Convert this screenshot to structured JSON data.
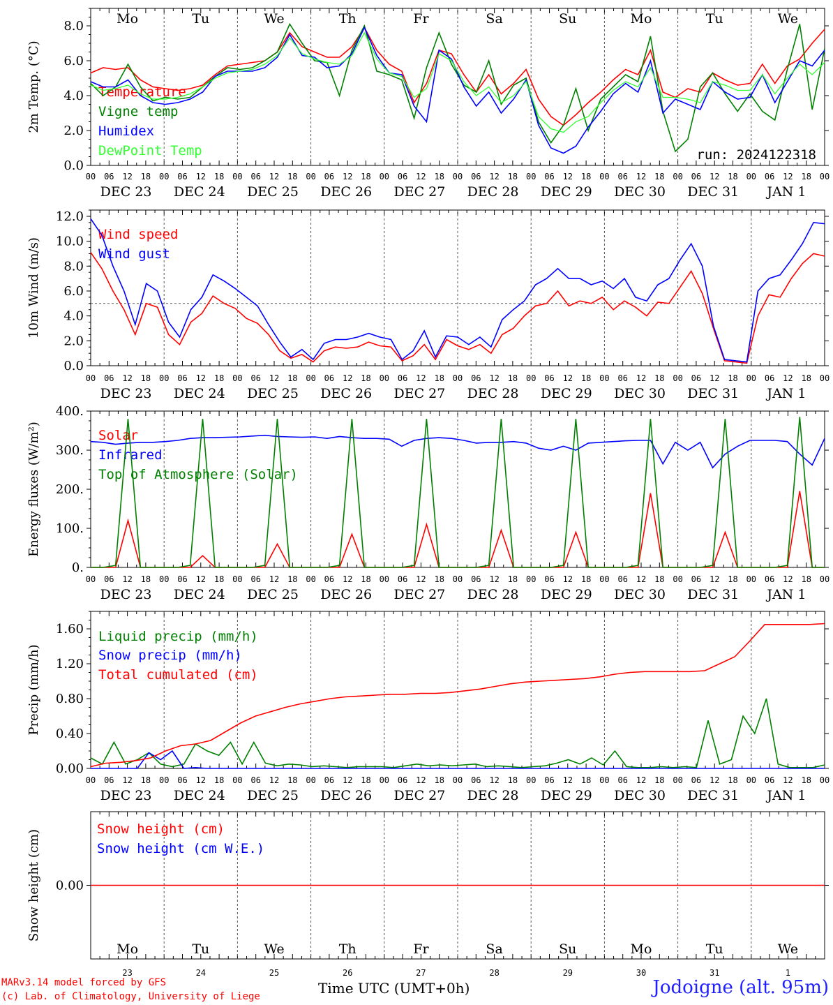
{
  "run_label": "run: 2024122318",
  "x_title": "Time UTC (UMT+0h)",
  "station": "Jodoigne (alt. 95m)",
  "credits": [
    "MARv3.14 model forced by GFS",
    "(c) Lab. of Climatology, University of Liege"
  ],
  "weekdays": [
    "Mo",
    "Tu",
    "We",
    "Th",
    "Fr",
    "Sa",
    "Su",
    "Mo",
    "Tu",
    "We"
  ],
  "weekend_days": [
    5,
    6
  ],
  "dates": [
    "DEC 23",
    "DEC 24",
    "DEC 25",
    "DEC 26",
    "DEC 27",
    "DEC 28",
    "DEC 29",
    "DEC 30",
    "DEC 31",
    "JAN  1"
  ],
  "day_numbers": [
    "23",
    "24",
    "25",
    "26",
    "27",
    "28",
    "29",
    "30",
    "31",
    "1"
  ],
  "hour_labels": [
    "00",
    "06",
    "12",
    "18"
  ],
  "final_hour_label": "00",
  "colors": {
    "red": "#ff0000",
    "green": "#008000",
    "blue": "#0000ff",
    "lime": "#33ff33",
    "weekend": "#ff0000"
  },
  "chart_data": [
    {
      "type": "line",
      "ylabel": "2m Temp. (°C)",
      "ylim": [
        0,
        9
      ],
      "yticks": [
        "0.0",
        "2.0",
        "4.0",
        "6.0",
        "8.0"
      ],
      "x_unit": "hours from DEC 23 00 UTC (3-hourly)",
      "series": [
        {
          "name": "Temperature",
          "color": "red",
          "values": [
            5.3,
            5.6,
            5.5,
            5.6,
            4.9,
            4.5,
            4.4,
            4.3,
            4.4,
            4.6,
            5.2,
            5.7,
            5.8,
            5.9,
            6.0,
            6.5,
            7.6,
            6.8,
            6.5,
            6.2,
            6.2,
            6.8,
            7.9,
            6.6,
            5.8,
            5.4,
            3.6,
            4.7,
            6.6,
            6.4,
            5.2,
            4.2,
            5.2,
            4.1,
            4.7,
            5.5,
            3.8,
            2.8,
            2.3,
            2.9,
            3.6,
            4.2,
            4.9,
            5.5,
            5.2,
            6.6,
            4.2,
            3.9,
            4.4,
            4.2,
            5.3,
            4.9,
            4.6,
            4.7,
            5.8,
            4.7,
            5.7,
            6.1,
            7.0,
            7.8
          ]
        },
        {
          "name": "Vigne temp",
          "color": "green",
          "values": [
            4.7,
            4.0,
            4.5,
            5.8,
            4.5,
            3.7,
            3.9,
            3.8,
            3.9,
            4.5,
            5.1,
            5.6,
            5.5,
            5.6,
            6.0,
            6.5,
            8.1,
            7.0,
            6.0,
            5.9,
            4.0,
            6.6,
            8.0,
            5.4,
            5.2,
            4.9,
            2.7,
            5.6,
            7.6,
            5.8,
            4.6,
            4.2,
            6.0,
            3.5,
            4.6,
            5.0,
            2.5,
            1.3,
            2.3,
            4.4,
            2.0,
            3.8,
            4.5,
            5.2,
            4.8,
            7.4,
            3.1,
            0.8,
            1.5,
            4.5,
            5.3,
            4.1,
            3.1,
            4.1,
            3.1,
            2.6,
            5.5,
            8.1,
            3.2,
            6.7
          ]
        },
        {
          "name": "Humidex",
          "color": "blue",
          "values": [
            4.8,
            4.5,
            4.5,
            4.9,
            4.0,
            3.6,
            3.5,
            3.6,
            3.8,
            4.2,
            5.1,
            5.4,
            5.4,
            5.4,
            5.6,
            6.2,
            7.5,
            6.3,
            6.2,
            5.6,
            5.7,
            6.4,
            7.9,
            6.3,
            5.3,
            5.2,
            3.4,
            2.5,
            6.6,
            6.1,
            4.5,
            3.4,
            4.2,
            3.0,
            3.8,
            4.9,
            2.3,
            1.0,
            0.7,
            1.1,
            2.2,
            3.1,
            4.1,
            4.7,
            4.2,
            6.0,
            3.0,
            3.8,
            3.5,
            3.2,
            4.8,
            4.2,
            3.8,
            3.9,
            5.2,
            3.6,
            4.8,
            6.0,
            5.7,
            6.6
          ]
        },
        {
          "name": "DewPoint Temp",
          "color": "lime",
          "values": [
            4.6,
            4.3,
            4.4,
            4.6,
            4.1,
            3.8,
            3.8,
            3.9,
            4.1,
            4.5,
            5.0,
            5.3,
            5.4,
            5.5,
            5.8,
            6.3,
            7.3,
            6.4,
            6.1,
            5.9,
            5.8,
            6.3,
            7.6,
            6.1,
            5.3,
            5.1,
            3.9,
            4.4,
            6.4,
            6.0,
            4.8,
            4.0,
            4.5,
            3.6,
            4.0,
            4.8,
            2.8,
            2.1,
            1.9,
            2.5,
            2.8,
            3.6,
            4.3,
            4.8,
            4.5,
            5.6,
            3.9,
            3.9,
            3.8,
            3.6,
            4.8,
            4.6,
            4.3,
            4.3,
            5.2,
            4.1,
            5.0,
            5.8,
            5.2,
            5.9
          ]
        }
      ]
    },
    {
      "type": "line",
      "ylabel": "10m Wind (m/s)",
      "ylim": [
        0,
        12.5
      ],
      "yticks": [
        "0.0",
        "2.0",
        "4.0",
        "6.0",
        "8.0",
        "10.0",
        "12.0"
      ],
      "hline": 5,
      "series": [
        {
          "name": "Wind speed",
          "color": "red",
          "values": [
            9.1,
            7.8,
            6.0,
            4.5,
            2.5,
            5.0,
            4.7,
            2.5,
            1.7,
            3.5,
            4.2,
            5.6,
            5.0,
            4.6,
            3.8,
            3.4,
            2.5,
            1.2,
            0.6,
            0.9,
            0.3,
            1.2,
            1.5,
            1.4,
            1.5,
            1.9,
            1.6,
            1.5,
            0.4,
            0.8,
            1.7,
            0.5,
            2.1,
            1.6,
            1.3,
            1.7,
            1.0,
            2.5,
            3.0,
            4.0,
            4.8,
            5.0,
            6.0,
            4.8,
            5.2,
            5.0,
            5.5,
            4.5,
            5.2,
            4.7,
            4.0,
            5.1,
            5.0,
            6.3,
            7.6,
            5.8,
            3.0,
            0.4,
            0.3,
            0.2,
            4.0,
            5.7,
            5.5,
            7.0,
            8.2,
            9.0,
            8.8
          ]
        },
        {
          "name": "Wind gust",
          "color": "blue",
          "values": [
            11.8,
            10.5,
            8.0,
            6.0,
            3.3,
            6.6,
            6.0,
            3.5,
            2.3,
            4.5,
            5.5,
            7.3,
            6.8,
            6.2,
            5.5,
            4.8,
            3.3,
            1.9,
            0.7,
            1.3,
            0.5,
            1.8,
            2.1,
            2.1,
            2.3,
            2.6,
            2.3,
            2.1,
            0.5,
            1.2,
            2.8,
            0.7,
            2.4,
            2.3,
            1.7,
            2.3,
            1.5,
            3.7,
            4.5,
            5.2,
            6.5,
            7.0,
            7.8,
            7.0,
            7.0,
            6.5,
            6.8,
            6.2,
            7.0,
            5.5,
            5.2,
            6.5,
            7.0,
            8.5,
            9.8,
            8.0,
            3.2,
            0.5,
            0.4,
            0.3,
            6.0,
            7.0,
            7.3,
            8.5,
            9.8,
            11.5,
            11.4
          ]
        }
      ]
    },
    {
      "type": "line",
      "ylabel": "Energy fluxes (W/m²)",
      "ylim": [
        0,
        400
      ],
      "yticks": [
        "0.",
        "100.",
        "200.",
        "300.",
        "400."
      ],
      "series": [
        {
          "name": "Solar",
          "color": "red",
          "values": [
            0,
            0,
            0,
            120,
            0,
            0,
            0,
            0,
            0,
            30,
            0,
            0,
            0,
            0,
            0,
            60,
            0,
            0,
            0,
            0,
            0,
            85,
            0,
            0,
            0,
            0,
            0,
            110,
            0,
            0,
            0,
            0,
            0,
            95,
            0,
            0,
            0,
            0,
            0,
            90,
            0,
            0,
            0,
            0,
            0,
            190,
            0,
            0,
            0,
            0,
            0,
            90,
            0,
            0,
            0,
            0,
            0,
            195,
            0,
            0
          ]
        },
        {
          "name": "Infrared",
          "color": "blue",
          "values": [
            322,
            320,
            315,
            318,
            320,
            320,
            322,
            325,
            330,
            332,
            332,
            333,
            334,
            336,
            338,
            335,
            334,
            333,
            334,
            330,
            335,
            332,
            330,
            330,
            328,
            310,
            325,
            330,
            332,
            330,
            325,
            318,
            320,
            320,
            322,
            318,
            305,
            300,
            310,
            300,
            318,
            320,
            322,
            324,
            325,
            325,
            265,
            320,
            300,
            320,
            255,
            290,
            310,
            325,
            325,
            325,
            322,
            290,
            262,
            330
          ]
        },
        {
          "name": "Top of Atmosphere (Solar)",
          "color": "green",
          "values": [
            0,
            0,
            5,
            380,
            0,
            0,
            0,
            0,
            5,
            380,
            0,
            0,
            0,
            0,
            5,
            380,
            0,
            0,
            0,
            0,
            5,
            380,
            0,
            0,
            0,
            0,
            5,
            380,
            0,
            0,
            0,
            0,
            5,
            380,
            0,
            0,
            0,
            0,
            5,
            380,
            0,
            0,
            0,
            0,
            5,
            380,
            0,
            0,
            0,
            0,
            5,
            380,
            0,
            0,
            0,
            0,
            5,
            385,
            0,
            0
          ]
        }
      ]
    },
    {
      "type": "line",
      "ylabel": "Precip (mm/h)",
      "ylim": [
        0,
        1.8
      ],
      "yticks": [
        "0.00",
        "0.40",
        "0.80",
        "1.20",
        "1.60"
      ],
      "series": [
        {
          "name": "Liquid precip (mm/h)",
          "color": "green",
          "values": [
            0.12,
            0.05,
            0.3,
            0.05,
            0.1,
            0.18,
            0.05,
            0.02,
            0.05,
            0.28,
            0.2,
            0.15,
            0.3,
            0.05,
            0.3,
            0.06,
            0.03,
            0.05,
            0.04,
            0.02,
            0.03,
            0.02,
            0.01,
            0.02,
            0.02,
            0.02,
            0.01,
            0.03,
            0.05,
            0.03,
            0.04,
            0.03,
            0.04,
            0.05,
            0.02,
            0.03,
            0.02,
            0.01,
            0.02,
            0.03,
            0.06,
            0.1,
            0.05,
            0.12,
            0.04,
            0.2,
            0.02,
            0.01,
            0.01,
            0.02,
            0.01,
            0.02,
            0.01,
            0.55,
            0.05,
            0.1,
            0.6,
            0.4,
            0.8,
            0.05,
            0.01,
            0.01,
            0.01,
            0.04
          ]
        },
        {
          "name": "Snow precip (mm/h)",
          "color": "blue",
          "values": [
            0,
            0,
            0,
            0,
            0,
            0.18,
            0.1,
            0.2,
            0,
            0.01,
            0,
            0,
            0,
            0,
            0,
            0,
            0,
            0,
            0,
            0,
            0,
            0,
            0,
            0,
            0,
            0,
            0,
            0,
            0,
            0,
            0,
            0,
            0,
            0,
            0,
            0,
            0,
            0,
            0,
            0,
            0,
            0,
            0,
            0,
            0,
            0,
            0,
            0,
            0,
            0,
            0,
            0,
            0,
            0,
            0,
            0,
            0,
            0,
            0,
            0,
            0,
            0,
            0,
            0
          ]
        },
        {
          "name": "Total cumulated (cm)",
          "color": "red",
          "values": [
            0.02,
            0.06,
            0.07,
            0.09,
            0.12,
            0.2,
            0.26,
            0.28,
            0.32,
            0.42,
            0.52,
            0.6,
            0.65,
            0.7,
            0.74,
            0.77,
            0.8,
            0.82,
            0.83,
            0.84,
            0.85,
            0.85,
            0.86,
            0.86,
            0.87,
            0.89,
            0.91,
            0.94,
            0.97,
            0.99,
            1.0,
            1.01,
            1.02,
            1.03,
            1.05,
            1.08,
            1.1,
            1.11,
            1.11,
            1.11,
            1.11,
            1.12,
            1.2,
            1.28,
            1.46,
            1.65,
            1.65,
            1.65,
            1.65,
            1.66
          ]
        }
      ]
    },
    {
      "type": "line",
      "ylabel": "Snow height (cm)",
      "ylim": [
        -1,
        1
      ],
      "yticks": [
        "0.00"
      ],
      "series": [
        {
          "name": "Snow height (cm)",
          "color": "red",
          "values": [
            0,
            0
          ]
        },
        {
          "name": "Snow height (cm W.E.)",
          "color": "blue",
          "values": []
        }
      ]
    }
  ]
}
